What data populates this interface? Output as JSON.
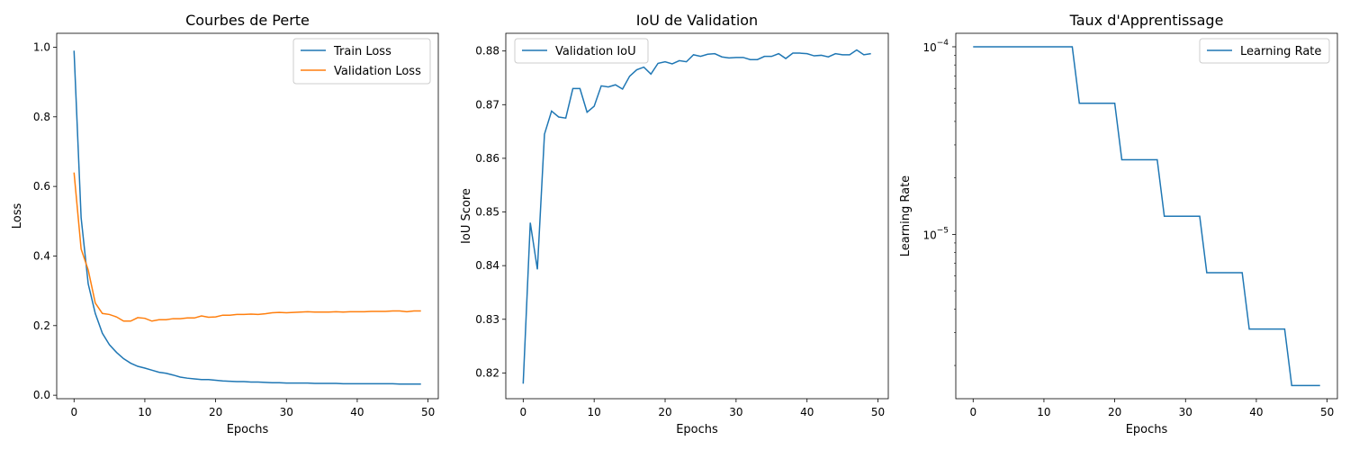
{
  "chart_data": [
    {
      "type": "line",
      "title": "Courbes de Perte",
      "xlabel": "Epochs",
      "ylabel": "Loss",
      "xlim": [
        -2.45,
        51.45
      ],
      "ylim": [
        -0.01,
        1.04
      ],
      "xticks": [
        0,
        10,
        20,
        30,
        40,
        50
      ],
      "yticks": [
        0.0,
        0.2,
        0.4,
        0.6,
        0.8,
        1.0
      ],
      "ytick_labels": [
        "0.0",
        "0.2",
        "0.4",
        "0.6",
        "0.8",
        "1.0"
      ],
      "legend_position": "upper right",
      "series": [
        {
          "name": "Train Loss",
          "color": "#1f77b4",
          "x": [
            0,
            1,
            2,
            3,
            4,
            5,
            6,
            7,
            8,
            9,
            10,
            11,
            12,
            13,
            14,
            15,
            16,
            17,
            18,
            19,
            20,
            21,
            22,
            23,
            24,
            25,
            26,
            27,
            28,
            29,
            30,
            31,
            32,
            33,
            34,
            35,
            36,
            37,
            38,
            39,
            40,
            41,
            42,
            43,
            44,
            45,
            46,
            47,
            48,
            49
          ],
          "values": [
            0.99,
            0.51,
            0.32,
            0.235,
            0.178,
            0.145,
            0.123,
            0.105,
            0.092,
            0.083,
            0.078,
            0.072,
            0.066,
            0.063,
            0.058,
            0.052,
            0.049,
            0.047,
            0.045,
            0.045,
            0.043,
            0.041,
            0.04,
            0.039,
            0.039,
            0.038,
            0.038,
            0.037,
            0.036,
            0.036,
            0.035,
            0.035,
            0.035,
            0.035,
            0.034,
            0.034,
            0.034,
            0.034,
            0.033,
            0.033,
            0.033,
            0.033,
            0.033,
            0.033,
            0.033,
            0.033,
            0.032,
            0.032,
            0.032,
            0.032
          ]
        },
        {
          "name": "Validation Loss",
          "color": "#ff7f0e",
          "x": [
            0,
            1,
            2,
            3,
            4,
            5,
            6,
            7,
            8,
            9,
            10,
            11,
            12,
            13,
            14,
            15,
            16,
            17,
            18,
            19,
            20,
            21,
            22,
            23,
            24,
            25,
            26,
            27,
            28,
            29,
            30,
            31,
            32,
            33,
            34,
            35,
            36,
            37,
            38,
            39,
            40,
            41,
            42,
            43,
            44,
            45,
            46,
            47,
            48,
            49
          ],
          "values": [
            0.64,
            0.42,
            0.36,
            0.265,
            0.235,
            0.232,
            0.225,
            0.213,
            0.213,
            0.223,
            0.221,
            0.213,
            0.217,
            0.217,
            0.22,
            0.22,
            0.222,
            0.222,
            0.228,
            0.224,
            0.225,
            0.23,
            0.23,
            0.232,
            0.232,
            0.233,
            0.232,
            0.234,
            0.237,
            0.238,
            0.237,
            0.238,
            0.239,
            0.24,
            0.239,
            0.239,
            0.239,
            0.24,
            0.239,
            0.24,
            0.24,
            0.24,
            0.241,
            0.241,
            0.241,
            0.242,
            0.242,
            0.24,
            0.242,
            0.242
          ]
        }
      ]
    },
    {
      "type": "line",
      "title": "IoU de Validation",
      "xlabel": "Epochs",
      "ylabel": "IoU Score",
      "xlim": [
        -2.45,
        51.45
      ],
      "ylim": [
        0.8152,
        0.8833
      ],
      "xticks": [
        0,
        10,
        20,
        30,
        40,
        50
      ],
      "yticks": [
        0.82,
        0.83,
        0.84,
        0.85,
        0.86,
        0.87,
        0.88
      ],
      "ytick_labels": [
        "0.82",
        "0.83",
        "0.84",
        "0.85",
        "0.86",
        "0.87",
        "0.88"
      ],
      "legend_position": "upper left",
      "series": [
        {
          "name": "Validation IoU",
          "color": "#1f77b4",
          "x": [
            0,
            1,
            2,
            3,
            4,
            5,
            6,
            7,
            8,
            9,
            10,
            11,
            12,
            13,
            14,
            15,
            16,
            17,
            18,
            19,
            20,
            21,
            22,
            23,
            24,
            25,
            26,
            27,
            28,
            29,
            30,
            31,
            32,
            33,
            34,
            35,
            36,
            37,
            38,
            39,
            40,
            41,
            42,
            43,
            44,
            45,
            46,
            47,
            48,
            49
          ],
          "values": [
            0.818,
            0.848,
            0.8393,
            0.8645,
            0.8688,
            0.8677,
            0.8675,
            0.873,
            0.873,
            0.8686,
            0.8697,
            0.8735,
            0.8733,
            0.8737,
            0.8729,
            0.8753,
            0.8765,
            0.877,
            0.8757,
            0.8777,
            0.878,
            0.8776,
            0.8782,
            0.878,
            0.8793,
            0.879,
            0.8794,
            0.8795,
            0.8789,
            0.8787,
            0.8788,
            0.8788,
            0.8784,
            0.8784,
            0.879,
            0.879,
            0.8795,
            0.8786,
            0.8796,
            0.8796,
            0.8795,
            0.8791,
            0.8792,
            0.8789,
            0.8795,
            0.8793,
            0.8793,
            0.8802,
            0.8793,
            0.8795
          ]
        }
      ]
    },
    {
      "type": "line",
      "title": "Taux d'Apprentissage",
      "xlabel": "Epochs",
      "ylabel": "Learning Rate",
      "yscale": "log",
      "xlim": [
        -2.45,
        51.45
      ],
      "ylim": [
        1.33e-06,
        0.000118
      ],
      "xticks": [
        0,
        10,
        20,
        30,
        40,
        50
      ],
      "yticks": [
        1e-05,
        0.0001
      ],
      "ytick_labels": [
        [
          "10",
          "−5"
        ],
        [
          "10",
          "−4"
        ]
      ],
      "legend_position": "upper right",
      "series": [
        {
          "name": "Learning Rate",
          "color": "#1f77b4",
          "x": [
            0,
            14,
            15,
            20,
            21,
            26,
            27,
            32,
            33,
            38,
            39,
            44,
            45,
            49
          ],
          "values": [
            0.0001,
            0.0001,
            5e-05,
            5e-05,
            2.5e-05,
            2.5e-05,
            1.25e-05,
            1.25e-05,
            6.25e-06,
            6.25e-06,
            3.125e-06,
            3.125e-06,
            1.5625e-06,
            1.5625e-06
          ]
        }
      ]
    }
  ]
}
